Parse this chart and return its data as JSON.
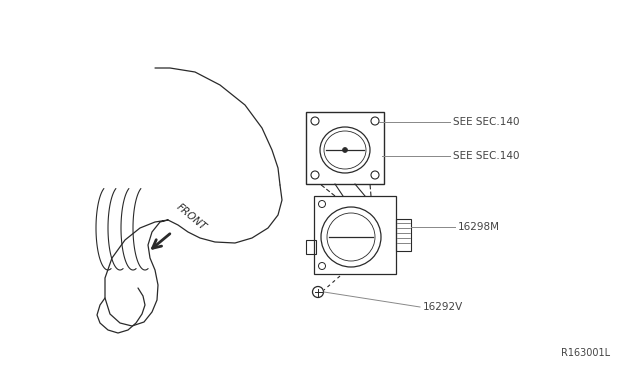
{
  "bg_color": "#ffffff",
  "line_color": "#2a2a2a",
  "label_color": "#444444",
  "ref_color": "#888888",
  "title_ref": "R163001L",
  "labels": {
    "sec140_top": "SEE SEC.140",
    "sec140_bot": "SEE SEC.140",
    "part_16298M": "16298M",
    "part_16292V": "16292V",
    "front": "FRONT"
  },
  "figsize": [
    6.4,
    3.72
  ],
  "dpi": 100
}
